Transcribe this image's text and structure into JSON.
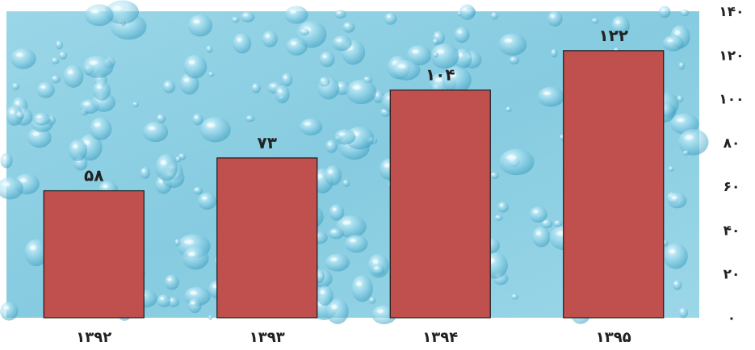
{
  "chart_data": {
    "type": "bar",
    "title": "",
    "xlabel": "",
    "ylabel": "",
    "categories": [
      "۱۳۹۲",
      "۱۳۹۳",
      "۱۳۹۴",
      "۱۳۹۵"
    ],
    "values": [
      58,
      73,
      104,
      122
    ],
    "value_labels": [
      "۵۸",
      "۷۳",
      "۱۰۴",
      "۱۲۲"
    ],
    "ylim": [
      0,
      140
    ],
    "y_ticks": [
      0,
      20,
      40,
      60,
      80,
      100,
      120,
      140
    ],
    "y_tick_labels": [
      "۰",
      "۲۰",
      "۴۰",
      "۶۰",
      "۸۰",
      "۱۰۰",
      "۱۲۰",
      "۱۴۰"
    ],
    "y_axis_side": "right",
    "grid": false,
    "legend": "none",
    "bar_color": "#c0504d",
    "bar_stroke": "#1a1a1a",
    "plot_background": "water-droplets",
    "plot_background_color": "#8fd0e4"
  }
}
